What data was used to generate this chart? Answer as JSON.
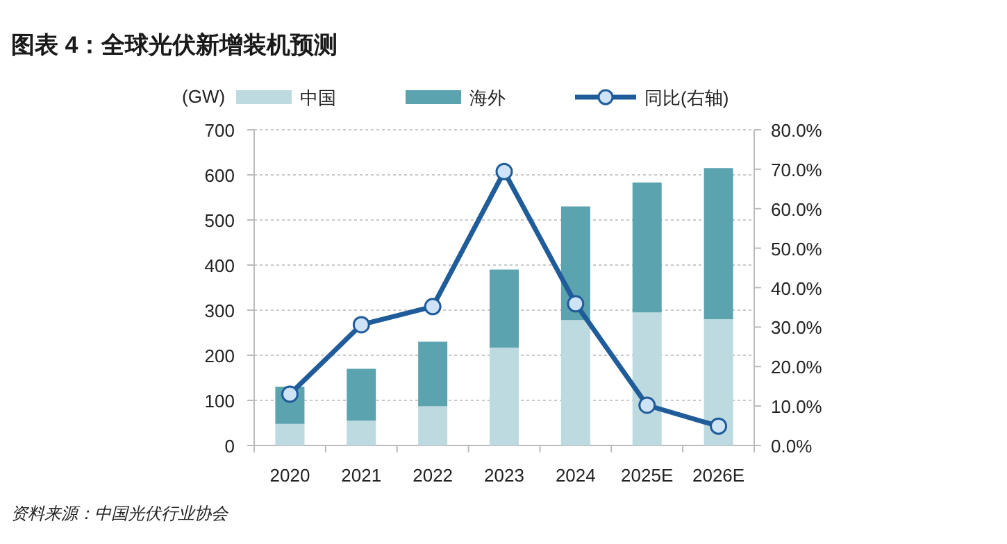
{
  "chart_data": {
    "type": "bar",
    "title": "图表 4：全球光伏新增装机预测",
    "ylabel": "(GW)",
    "stacked": true,
    "categories": [
      "2020",
      "2021",
      "2022",
      "2023",
      "2024",
      "2025E",
      "2026E"
    ],
    "series": [
      {
        "name": "中国",
        "color": "#bcdadf",
        "values": [
          48,
          55,
          87,
          217,
          278,
          295,
          280
        ]
      },
      {
        "name": "海外",
        "color": "#5ba3ae",
        "values": [
          82,
          115,
          143,
          173,
          252,
          288,
          335
        ]
      },
      {
        "name": "同比(右轴)",
        "type": "line",
        "axis": "y2",
        "color": "#1f5c99",
        "marker": "circle",
        "values": [
          13.0,
          30.6,
          35.2,
          69.4,
          35.9,
          10.2,
          4.9
        ]
      }
    ],
    "ylim": [
      0,
      700
    ],
    "yticks": [
      0,
      100,
      200,
      300,
      400,
      500,
      600,
      700
    ],
    "y2lim": [
      0,
      80
    ],
    "y2ticks": [
      {
        "value": 0,
        "label": "0.0%"
      },
      {
        "value": 10,
        "label": "10.0%"
      },
      {
        "value": 20,
        "label": "20.0%"
      },
      {
        "value": 30,
        "label": "30.0%"
      },
      {
        "value": 40,
        "label": "40.0%"
      },
      {
        "value": 50,
        "label": "50.0%"
      },
      {
        "value": 60,
        "label": "60.0%"
      },
      {
        "value": 70,
        "label": "70.0%"
      },
      {
        "value": 80,
        "label": "80.0%"
      }
    ],
    "grid": "y",
    "legend": "top",
    "annotations": [
      "资料来源：中国光伏行业协会"
    ]
  }
}
